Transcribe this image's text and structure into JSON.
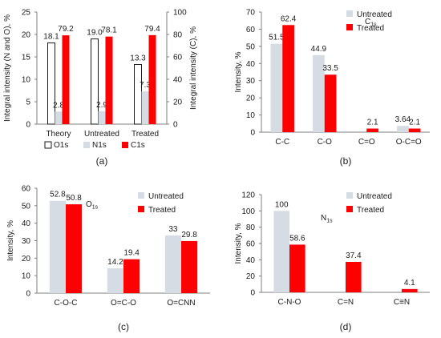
{
  "colors": {
    "untreated": "#D5DCE4",
    "treated": "#FF0000",
    "o1s": "#FFFFFF",
    "n1s": "#D5DCE4",
    "c1s": "#FF0000",
    "axis": "#7F7F7F"
  },
  "chart_data": [
    {
      "panel": "(a)",
      "type": "bar",
      "categories": [
        "Theory",
        "Untreated",
        "Treated"
      ],
      "series": [
        {
          "name": "O1s",
          "axis": "left",
          "values": [
            18.1,
            19.0,
            13.3
          ],
          "labels": [
            "18.1",
            "19.0",
            "13.3"
          ]
        },
        {
          "name": "N1s",
          "axis": "left",
          "values": [
            2.8,
            2.9,
            7.3
          ],
          "labels": [
            "2.8",
            "2.9",
            "7.3"
          ]
        },
        {
          "name": "C1s",
          "axis": "right",
          "values": [
            79.2,
            78.1,
            79.4
          ],
          "labels": [
            "79.2",
            "78.1",
            "79.4"
          ]
        }
      ],
      "ylabel": "Integral intensity (N and O), %",
      "y2label": "Integral intensity (C), %",
      "ylim": [
        0,
        25
      ],
      "yticks": [
        "0",
        "5",
        "10",
        "15",
        "20",
        "25"
      ],
      "y2lim": [
        0,
        100
      ],
      "y2ticks": [
        "0",
        "20",
        "40",
        "60",
        "80",
        "100"
      ],
      "legend": "bottom"
    },
    {
      "panel": "(b)",
      "type": "bar",
      "title_main": "C",
      "title_sub": "1s",
      "categories": [
        "C-C",
        "C-O",
        "C=O",
        "O-C=O"
      ],
      "series": [
        {
          "name": "Untreated",
          "values": [
            51.5,
            44.9,
            0,
            3.64
          ],
          "labels": [
            "51.5",
            "44.9",
            "",
            "3.64"
          ]
        },
        {
          "name": "Treated",
          "values": [
            62.4,
            33.5,
            2.1,
            2.1
          ],
          "labels": [
            "62.4",
            "33.5",
            "2.1",
            "2.1"
          ]
        }
      ],
      "ylabel": "Intensity, %",
      "ylim": [
        0,
        70
      ],
      "yticks": [
        "0",
        "10",
        "20",
        "30",
        "40",
        "50",
        "60",
        "70"
      ],
      "legend": "top-right"
    },
    {
      "panel": "(c)",
      "type": "bar",
      "title_main": "O",
      "title_sub": "1s",
      "categories": [
        "C-O-C",
        "O=C-O",
        "O=CNN"
      ],
      "series": [
        {
          "name": "Untreated",
          "values": [
            52.8,
            14.2,
            33
          ],
          "labels": [
            "52.8",
            "14.2",
            "33"
          ]
        },
        {
          "name": "Treated",
          "values": [
            50.8,
            19.4,
            29.8
          ],
          "labels": [
            "50.8",
            "19.4",
            "29.8"
          ]
        }
      ],
      "ylabel": "Intensity, %",
      "ylim": [
        0,
        60
      ],
      "yticks": [
        "0",
        "10",
        "20",
        "30",
        "40",
        "50",
        "60"
      ],
      "legend": "top-right"
    },
    {
      "panel": "(d)",
      "type": "bar",
      "title_main": "N",
      "title_sub": "1s",
      "categories": [
        "C-N-O",
        "C=N",
        "C≡N"
      ],
      "series": [
        {
          "name": "Untreated",
          "values": [
            100,
            0,
            0
          ],
          "labels": [
            "100",
            "",
            ""
          ]
        },
        {
          "name": "Treated",
          "values": [
            58.6,
            37.4,
            4.1
          ],
          "labels": [
            "58.6",
            "37.4",
            "4.1"
          ]
        }
      ],
      "ylabel": "Intensity, %",
      "ylim": [
        0,
        120
      ],
      "yticks": [
        "0",
        "20",
        "40",
        "60",
        "80",
        "100",
        "120"
      ],
      "legend": "top-right"
    }
  ]
}
